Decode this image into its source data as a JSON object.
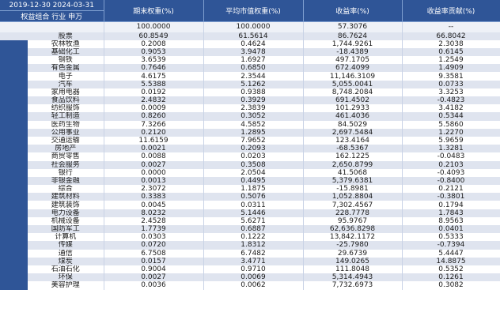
{
  "header": {
    "title": "2019-12-30 2024-03-31",
    "subtitle": "权益组合 行业 申万",
    "columns": [
      "期末权重(%)",
      "平均市值权重(%)",
      "收益率(%)",
      "收益率贡献(%)"
    ]
  },
  "summary": {
    "values": [
      "100.0000",
      "100.0000",
      "57.3076",
      "--"
    ]
  },
  "total": {
    "label": "股票",
    "values": [
      "60.8549",
      "61.5614",
      "86.7624",
      "66.8042"
    ]
  },
  "rows": [
    {
      "label": "农林牧渔",
      "values": [
        "0.2008",
        "0.4624",
        "1,744.9261",
        "2.3038"
      ]
    },
    {
      "label": "基础化工",
      "values": [
        "0.9053",
        "3.9478",
        "-18.4389",
        "0.6145"
      ]
    },
    {
      "label": "钢铁",
      "values": [
        "3.6539",
        "1.6927",
        "497.1705",
        "1.2549"
      ]
    },
    {
      "label": "有色金属",
      "values": [
        "0.7646",
        "0.6850",
        "672.4099",
        "1.4909"
      ]
    },
    {
      "label": "电子",
      "values": [
        "4.6175",
        "2.3544",
        "11,146.3109",
        "9.3581"
      ]
    },
    {
      "label": "汽车",
      "values": [
        "5.5388",
        "5.1262",
        "5,055.0041",
        "0.0733"
      ]
    },
    {
      "label": "家用电器",
      "values": [
        "0.0192",
        "0.9388",
        "8,748.2084",
        "3.3253"
      ]
    },
    {
      "label": "食品饮料",
      "values": [
        "2.4832",
        "0.3929",
        "691.4502",
        "-0.4823"
      ]
    },
    {
      "label": "纺织服饰",
      "values": [
        "0.0009",
        "2.3839",
        "101.2933",
        "3.4182"
      ]
    },
    {
      "label": "轻工制造",
      "values": [
        "0.8260",
        "0.3052",
        "461.4036",
        "0.5344"
      ]
    },
    {
      "label": "医药生物",
      "values": [
        "7.3266",
        "4.5852",
        "84.5029",
        "5.5860"
      ]
    },
    {
      "label": "公用事业",
      "values": [
        "0.2120",
        "1.2895",
        "2,697.5484",
        "1.2270"
      ]
    },
    {
      "label": "交通运输",
      "values": [
        "11.6159",
        "7.9652",
        "123.4164",
        "5.9659"
      ]
    },
    {
      "label": "房地产",
      "values": [
        "0.0021",
        "0.2093",
        "-68.5367",
        "1.3281"
      ]
    },
    {
      "label": "商贸零售",
      "values": [
        "0.0088",
        "0.0203",
        "162.1225",
        "-0.0483"
      ]
    },
    {
      "label": "社会服务",
      "values": [
        "0.0027",
        "0.3508",
        "2,650.8799",
        "0.2103"
      ]
    },
    {
      "label": "银行",
      "values": [
        "0.0000",
        "2.0504",
        "41.5068",
        "-0.4093"
      ]
    },
    {
      "label": "非银金融",
      "values": [
        "0.0013",
        "0.4495",
        "5,379.6381",
        "-0.8400"
      ]
    },
    {
      "label": "综合",
      "values": [
        "2.3072",
        "1.1875",
        "-15.8981",
        "0.2121"
      ]
    },
    {
      "label": "建筑材料",
      "values": [
        "0.3383",
        "0.5076",
        "1,052.8804",
        "-0.3801"
      ]
    },
    {
      "label": "建筑装饰",
      "values": [
        "0.0045",
        "0.0311",
        "7,302.4567",
        "0.1794"
      ]
    },
    {
      "label": "电力设备",
      "values": [
        "8.0232",
        "5.1446",
        "228.7778",
        "1.7843"
      ]
    },
    {
      "label": "机械设备",
      "values": [
        "2.4528",
        "5.6271",
        "95.9767",
        "8.9563"
      ]
    },
    {
      "label": "国防军工",
      "values": [
        "1.7739",
        "0.6887",
        "62,636.8298",
        "0.0401"
      ]
    },
    {
      "label": "计算机",
      "values": [
        "0.0303",
        "0.1222",
        "13,842.1172",
        "0.5333"
      ]
    },
    {
      "label": "传媒",
      "values": [
        "0.0720",
        "1.8312",
        "-25.7980",
        "-0.7394"
      ]
    },
    {
      "label": "通信",
      "values": [
        "6.7508",
        "6.7482",
        "29.6739",
        "5.4447"
      ]
    },
    {
      "label": "煤炭",
      "values": [
        "0.0157",
        "3.4771",
        "149.0265",
        "14.8875"
      ]
    },
    {
      "label": "石油石化",
      "values": [
        "0.9004",
        "0.9710",
        "111.8048",
        "0.5352"
      ]
    },
    {
      "label": "环保",
      "values": [
        "0.0027",
        "0.0069",
        "5,314.4943",
        "0.1261"
      ]
    },
    {
      "label": "美容护理",
      "values": [
        "0.0036",
        "0.0062",
        "7,732.6973",
        "0.3082"
      ]
    }
  ],
  "colors": {
    "header_bg": "#2f5597",
    "header_text": "#ffffff",
    "stripe": "#dfe4ef"
  }
}
